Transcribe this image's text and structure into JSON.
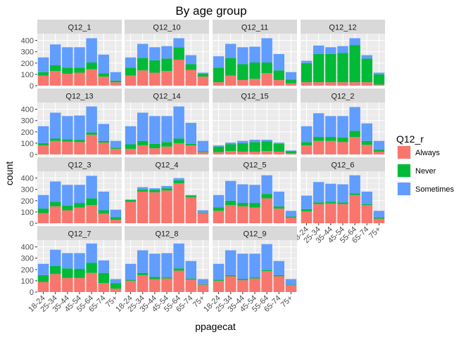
{
  "chart_data": {
    "type": "bar",
    "title": "By age group",
    "xlabel": "ppagecat",
    "ylabel": "count",
    "stacked": true,
    "grid": true,
    "ylim": [
      0,
      460
    ],
    "y_ticks": [
      0,
      100,
      200,
      300,
      400
    ],
    "legend": {
      "title": "Q12_r",
      "position": "right"
    },
    "categories": [
      "18-24",
      "25-34",
      "35-44",
      "45-54",
      "55-64",
      "65-74",
      "75+"
    ],
    "series_names": [
      "Always",
      "Never",
      "Sometimes"
    ],
    "series_colors": {
      "Always": "#F8766D",
      "Never": "#00BA38",
      "Sometimes": "#619CFF"
    },
    "panels": [
      {
        "title": "Q12_1",
        "series": [
          {
            "name": "Always",
            "values": [
              90,
              130,
              105,
              115,
              145,
              80,
              30
            ]
          },
          {
            "name": "Never",
            "values": [
              30,
              50,
              55,
              45,
              60,
              30,
              15
            ]
          },
          {
            "name": "Sometimes",
            "values": [
              130,
              185,
              180,
              180,
              215,
              165,
              75
            ]
          }
        ]
      },
      {
        "title": "Q12_10",
        "series": [
          {
            "name": "Always",
            "values": [
              90,
              135,
              115,
              130,
              230,
              140,
              80
            ]
          },
          {
            "name": "Never",
            "values": [
              70,
              110,
              110,
              110,
              110,
              50,
              25
            ]
          },
          {
            "name": "Sometimes",
            "values": [
              90,
              125,
              115,
              110,
              80,
              80,
              10
            ]
          }
        ]
      },
      {
        "title": "Q12_11",
        "series": [
          {
            "name": "Always",
            "values": [
              30,
              90,
              50,
              60,
              110,
              50,
              20
            ]
          },
          {
            "name": "Never",
            "values": [
              130,
              155,
              140,
              145,
              95,
              85,
              35
            ]
          },
          {
            "name": "Sometimes",
            "values": [
              100,
              125,
              150,
              140,
              215,
              145,
              65
            ]
          }
        ]
      },
      {
        "title": "Q12_12",
        "series": [
          {
            "name": "Always",
            "values": [
              30,
              30,
              30,
              30,
              30,
              30,
              10
            ]
          },
          {
            "name": "Never",
            "values": [
              170,
              250,
              250,
              260,
              330,
              210,
              90
            ]
          },
          {
            "name": "Sometimes",
            "values": [
              20,
              75,
              60,
              60,
              60,
              30,
              15
            ]
          }
        ]
      },
      {
        "title": "Q12_13",
        "series": [
          {
            "name": "Always",
            "values": [
              80,
              120,
              115,
              110,
              175,
              105,
              50
            ]
          },
          {
            "name": "Never",
            "values": [
              20,
              20,
              20,
              20,
              20,
              15,
              10
            ]
          },
          {
            "name": "Sometimes",
            "values": [
              150,
              230,
              205,
              215,
              230,
              150,
              60
            ]
          }
        ]
      },
      {
        "title": "Q12_14",
        "series": [
          {
            "name": "Always",
            "values": [
              50,
              80,
              55,
              70,
              100,
              80,
              20
            ]
          },
          {
            "name": "Never",
            "values": [
              40,
              40,
              40,
              40,
              40,
              15,
              10
            ]
          },
          {
            "name": "Sometimes",
            "values": [
              160,
              250,
              245,
              230,
              285,
              185,
              90
            ]
          }
        ]
      },
      {
        "title": "Q12_15",
        "series": [
          {
            "name": "Always",
            "values": [
              20,
              30,
              25,
              25,
              30,
              25,
              10
            ]
          },
          {
            "name": "Never",
            "values": [
              50,
              60,
              75,
              85,
              85,
              70,
              20
            ]
          },
          {
            "name": "Sometimes",
            "values": [
              10,
              15,
              20,
              20,
              15,
              10,
              5
            ]
          }
        ]
      },
      {
        "title": "Q12_2",
        "series": [
          {
            "name": "Always",
            "values": [
              80,
              120,
              120,
              110,
              155,
              85,
              25
            ]
          },
          {
            "name": "Never",
            "values": [
              30,
              35,
              35,
              40,
              55,
              35,
              20
            ]
          },
          {
            "name": "Sometimes",
            "values": [
              140,
              210,
              185,
              190,
              210,
              155,
              75
            ]
          }
        ]
      },
      {
        "title": "Q12_3",
        "series": [
          {
            "name": "Always",
            "values": [
              90,
              150,
              115,
              140,
              160,
              85,
              30
            ]
          },
          {
            "name": "Never",
            "values": [
              40,
              40,
              40,
              40,
              60,
              30,
              25
            ]
          },
          {
            "name": "Sometimes",
            "values": [
              120,
              180,
              185,
              160,
              200,
              165,
              65
            ]
          }
        ]
      },
      {
        "title": "Q12_4",
        "series": [
          {
            "name": "Always",
            "values": [
              190,
              280,
              275,
              290,
              355,
              230,
              90
            ]
          },
          {
            "name": "Never",
            "values": [
              15,
              20,
              20,
              20,
              25,
              15,
              5
            ]
          },
          {
            "name": "Sometimes",
            "values": [
              5,
              20,
              15,
              20,
              20,
              5,
              20
            ]
          }
        ]
      },
      {
        "title": "Q12_5",
        "series": [
          {
            "name": "Always",
            "values": [
              110,
              160,
              150,
              140,
              220,
              130,
              50
            ]
          },
          {
            "name": "Never",
            "values": [
              30,
              40,
              30,
              40,
              40,
              20,
              10
            ]
          },
          {
            "name": "Sometimes",
            "values": [
              110,
              175,
              165,
              160,
              165,
              130,
              50
            ]
          }
        ]
      },
      {
        "title": "Q12_6",
        "series": [
          {
            "name": "Always",
            "values": [
              105,
              170,
              175,
              170,
              250,
              160,
              40
            ]
          },
          {
            "name": "Never",
            "values": [
              20,
              15,
              15,
              15,
              15,
              10,
              10
            ]
          },
          {
            "name": "Sometimes",
            "values": [
              120,
              180,
              160,
              160,
              160,
              110,
              60
            ]
          }
        ]
      },
      {
        "title": "Q12_7",
        "series": [
          {
            "name": "Always",
            "values": [
              90,
              160,
              125,
              125,
              170,
              80,
              30
            ]
          },
          {
            "name": "Never",
            "values": [
              60,
              70,
              85,
              80,
              90,
              90,
              50
            ]
          },
          {
            "name": "Sometimes",
            "values": [
              100,
              145,
              135,
              140,
              170,
              110,
              35
            ]
          }
        ]
      },
      {
        "title": "Q12_8",
        "series": [
          {
            "name": "Always",
            "values": [
              100,
              150,
              115,
              120,
              190,
              110,
              65
            ]
          },
          {
            "name": "Never",
            "values": [
              10,
              20,
              20,
              10,
              20,
              10,
              5
            ]
          },
          {
            "name": "Sometimes",
            "values": [
              140,
              200,
              205,
              215,
              220,
              155,
              45
            ]
          }
        ]
      },
      {
        "title": "Q12_9",
        "series": [
          {
            "name": "Always",
            "values": [
              100,
              140,
              105,
              120,
              185,
              140,
              60
            ]
          },
          {
            "name": "Never",
            "values": [
              10,
              10,
              10,
              10,
              10,
              10,
              5
            ]
          },
          {
            "name": "Sometimes",
            "values": [
              140,
              220,
              225,
              210,
              230,
              125,
              50
            ]
          }
        ]
      }
    ]
  }
}
